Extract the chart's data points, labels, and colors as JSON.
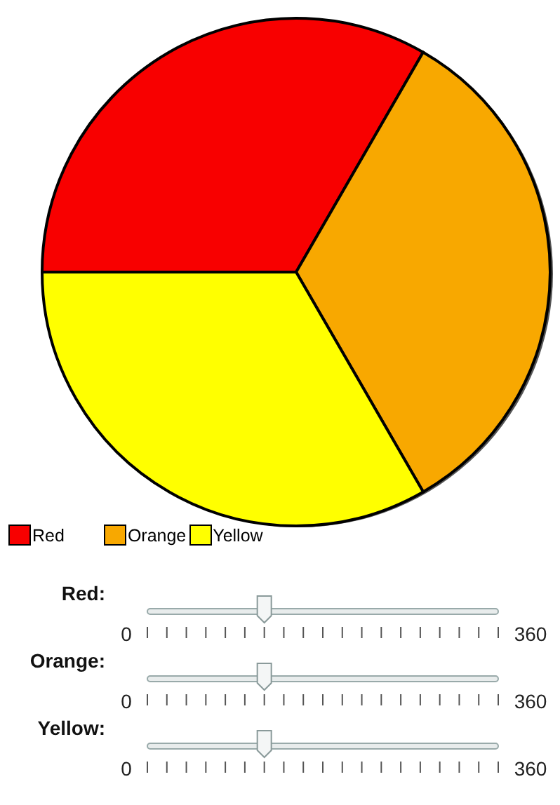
{
  "chart_data": {
    "type": "pie",
    "categories": [
      "Red",
      "Orange",
      "Yellow"
    ],
    "values": [
      33.33,
      33.33,
      33.34
    ],
    "colors": [
      "#f80000",
      "#f8a800",
      "#ffff00"
    ],
    "legend": "bottom left",
    "annotations": [
      "Red:",
      "0",
      "360",
      "Orange:",
      "0",
      "360",
      "Yellow:",
      "0",
      "360"
    ]
  }
}
